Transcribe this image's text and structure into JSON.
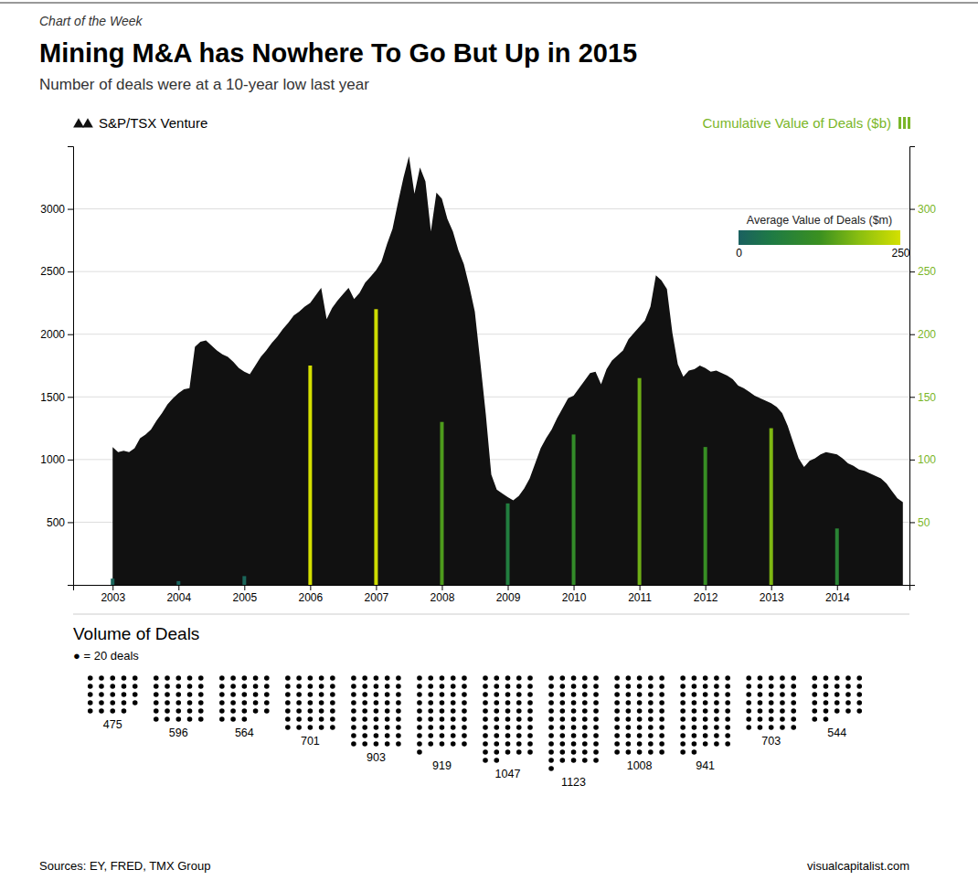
{
  "chart_data": {
    "type": "bar",
    "header": "Chart of the Week",
    "title": "Mining M&A has Nowhere To Go But Up in 2015",
    "subtitle": "Number of deals were at a 10-year low last year",
    "sources": "Sources: EY, FRED, TMX Group",
    "website": "visualcapitalist.com",
    "xlim": [
      2002.4,
      2015.1
    ],
    "xticks": [
      2003,
      2004,
      2005,
      2006,
      2007,
      2008,
      2009,
      2010,
      2011,
      2012,
      2013,
      2014
    ],
    "ylim": [
      0,
      3500
    ],
    "yticks": [
      500,
      1000,
      1500,
      2000,
      2500,
      3000
    ],
    "y2lim": [
      0,
      350
    ],
    "y2ticks": [
      50,
      100,
      150,
      200,
      250,
      300
    ],
    "grid": true,
    "series": [
      {
        "name": "S&P/TSX Venture",
        "type": "area",
        "color": "#111111",
        "x": [
          2003.0,
          2003.083,
          2003.167,
          2003.25,
          2003.333,
          2003.417,
          2003.5,
          2003.583,
          2003.667,
          2003.75,
          2003.833,
          2003.917,
          2004.0,
          2004.083,
          2004.167,
          2004.25,
          2004.333,
          2004.417,
          2004.5,
          2004.583,
          2004.667,
          2004.75,
          2004.833,
          2004.917,
          2005.0,
          2005.083,
          2005.167,
          2005.25,
          2005.333,
          2005.417,
          2005.5,
          2005.583,
          2005.667,
          2005.75,
          2005.833,
          2005.917,
          2006.0,
          2006.083,
          2006.167,
          2006.25,
          2006.333,
          2006.417,
          2006.5,
          2006.583,
          2006.667,
          2006.75,
          2006.833,
          2006.917,
          2007.0,
          2007.083,
          2007.167,
          2007.25,
          2007.333,
          2007.417,
          2007.5,
          2007.583,
          2007.667,
          2007.75,
          2007.833,
          2007.917,
          2008.0,
          2008.083,
          2008.167,
          2008.25,
          2008.333,
          2008.417,
          2008.5,
          2008.583,
          2008.667,
          2008.75,
          2008.833,
          2008.917,
          2009.0,
          2009.083,
          2009.167,
          2009.25,
          2009.333,
          2009.417,
          2009.5,
          2009.583,
          2009.667,
          2009.75,
          2009.833,
          2009.917,
          2010.0,
          2010.083,
          2010.167,
          2010.25,
          2010.333,
          2010.417,
          2010.5,
          2010.583,
          2010.667,
          2010.75,
          2010.833,
          2010.917,
          2011.0,
          2011.083,
          2011.167,
          2011.25,
          2011.333,
          2011.417,
          2011.5,
          2011.583,
          2011.667,
          2011.75,
          2011.833,
          2011.917,
          2012.0,
          2012.083,
          2012.167,
          2012.25,
          2012.333,
          2012.417,
          2012.5,
          2012.583,
          2012.667,
          2012.75,
          2012.833,
          2012.917,
          2013.0,
          2013.083,
          2013.167,
          2013.25,
          2013.333,
          2013.417,
          2013.5,
          2013.583,
          2013.667,
          2013.75,
          2013.833,
          2013.917,
          2014.0,
          2014.083,
          2014.167,
          2014.25,
          2014.333,
          2014.417,
          2014.5,
          2014.583,
          2014.667,
          2014.75,
          2014.833,
          2014.917,
          2015.0
        ],
        "values": [
          1100,
          1060,
          1070,
          1060,
          1090,
          1170,
          1200,
          1240,
          1310,
          1370,
          1440,
          1490,
          1530,
          1560,
          1570,
          1900,
          1940,
          1950,
          1910,
          1870,
          1840,
          1820,
          1780,
          1730,
          1700,
          1680,
          1750,
          1820,
          1870,
          1930,
          1980,
          2040,
          2090,
          2150,
          2180,
          2220,
          2250,
          2310,
          2370,
          2120,
          2210,
          2270,
          2320,
          2370,
          2280,
          2330,
          2410,
          2460,
          2510,
          2580,
          2720,
          2840,
          3050,
          3250,
          3420,
          3120,
          3330,
          3220,
          2820,
          3130,
          3080,
          2920,
          2820,
          2670,
          2560,
          2380,
          2180,
          1780,
          1360,
          880,
          760,
          730,
          700,
          675,
          710,
          770,
          850,
          970,
          1090,
          1170,
          1240,
          1330,
          1410,
          1490,
          1510,
          1570,
          1630,
          1690,
          1700,
          1600,
          1720,
          1790,
          1830,
          1870,
          1960,
          2010,
          2060,
          2110,
          2220,
          2470,
          2430,
          2360,
          2010,
          1760,
          1660,
          1710,
          1720,
          1750,
          1730,
          1700,
          1710,
          1690,
          1670,
          1640,
          1590,
          1570,
          1540,
          1510,
          1490,
          1470,
          1450,
          1420,
          1370,
          1270,
          1140,
          1010,
          940,
          990,
          1010,
          1040,
          1060,
          1050,
          1040,
          1010,
          970,
          950,
          920,
          910,
          890,
          870,
          850,
          810,
          750,
          690,
          660
        ]
      },
      {
        "name": "Cumulative Value of Deals ($b)",
        "type": "bar",
        "axis": "y2",
        "color": "#7ab628",
        "x": [
          2003,
          2004,
          2005,
          2006,
          2007,
          2008,
          2009,
          2010,
          2011,
          2012,
          2013,
          2014
        ],
        "values": [
          5,
          3,
          7,
          175,
          220,
          130,
          65,
          120,
          165,
          110,
          125,
          45
        ],
        "color_values": [
          10,
          5,
          12,
          250,
          245,
          140,
          62,
          107,
          165,
          117,
          178,
          83
        ]
      }
    ],
    "colorbar": {
      "label": "Average Value of Deals ($m)",
      "lim": [
        0,
        250
      ],
      "ticks": [
        0,
        250
      ],
      "colors": [
        "#1a6060",
        "#1e7a45",
        "#3a9020",
        "#8bbf10",
        "#d4e000"
      ]
    },
    "volume": {
      "title": "Volume of Deals",
      "unit": 20,
      "unit_label": "● = 20 deals",
      "x": [
        2003,
        2004,
        2005,
        2006,
        2007,
        2008,
        2009,
        2010,
        2011,
        2012,
        2013,
        2014
      ],
      "values": [
        475,
        596,
        564,
        701,
        903,
        919,
        1047,
        1123,
        1008,
        941,
        703,
        544
      ]
    }
  }
}
